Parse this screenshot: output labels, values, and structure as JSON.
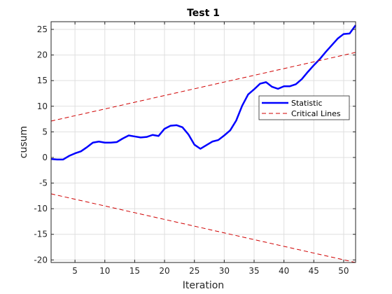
{
  "chart_data": {
    "type": "line",
    "title": "Test 1",
    "xlabel": "Iteration",
    "ylabel": "cusum",
    "xlim": [
      1,
      52
    ],
    "ylim": [
      -20.5,
      26.5
    ],
    "xticks": [
      5,
      10,
      15,
      20,
      25,
      30,
      35,
      40,
      45,
      50
    ],
    "yticks": [
      -20,
      -15,
      -10,
      -5,
      0,
      5,
      10,
      15,
      20,
      25
    ],
    "grid": true,
    "legend_position": "right",
    "series": [
      {
        "name": "Statistic",
        "style": "solid",
        "color": "#0000ff",
        "x": [
          1,
          2,
          3,
          4,
          5,
          6,
          7,
          8,
          9,
          10,
          11,
          12,
          13,
          14,
          15,
          16,
          17,
          18,
          19,
          20,
          21,
          22,
          23,
          24,
          25,
          26,
          27,
          28,
          29,
          30,
          31,
          32,
          33,
          34,
          35,
          36,
          37,
          38,
          39,
          40,
          41,
          42,
          43,
          44,
          45,
          46,
          47,
          48,
          49,
          50,
          51,
          52
        ],
        "values": [
          -0.3,
          -0.4,
          -0.4,
          0.3,
          0.8,
          1.2,
          2.0,
          2.9,
          3.1,
          2.9,
          2.9,
          3.0,
          3.7,
          4.3,
          4.1,
          3.9,
          4.0,
          4.4,
          4.2,
          5.6,
          6.2,
          6.3,
          5.9,
          4.5,
          2.5,
          1.7,
          2.4,
          3.1,
          3.4,
          4.3,
          5.3,
          7.2,
          10.1,
          12.3,
          13.3,
          14.4,
          14.7,
          13.8,
          13.4,
          13.9,
          13.9,
          14.3,
          15.3,
          16.7,
          18.0,
          19.2,
          20.6,
          21.9,
          23.2,
          24.1,
          24.2,
          25.8
        ]
      },
      {
        "name": "Critical Lines",
        "style": "dashed",
        "color": "#d00000",
        "x": [
          1,
          52
        ],
        "values": [
          7.1,
          20.5
        ]
      },
      {
        "name": "",
        "style": "dashed",
        "color": "#d00000",
        "x": [
          1,
          52
        ],
        "values": [
          -7.1,
          -20.5
        ]
      }
    ]
  }
}
